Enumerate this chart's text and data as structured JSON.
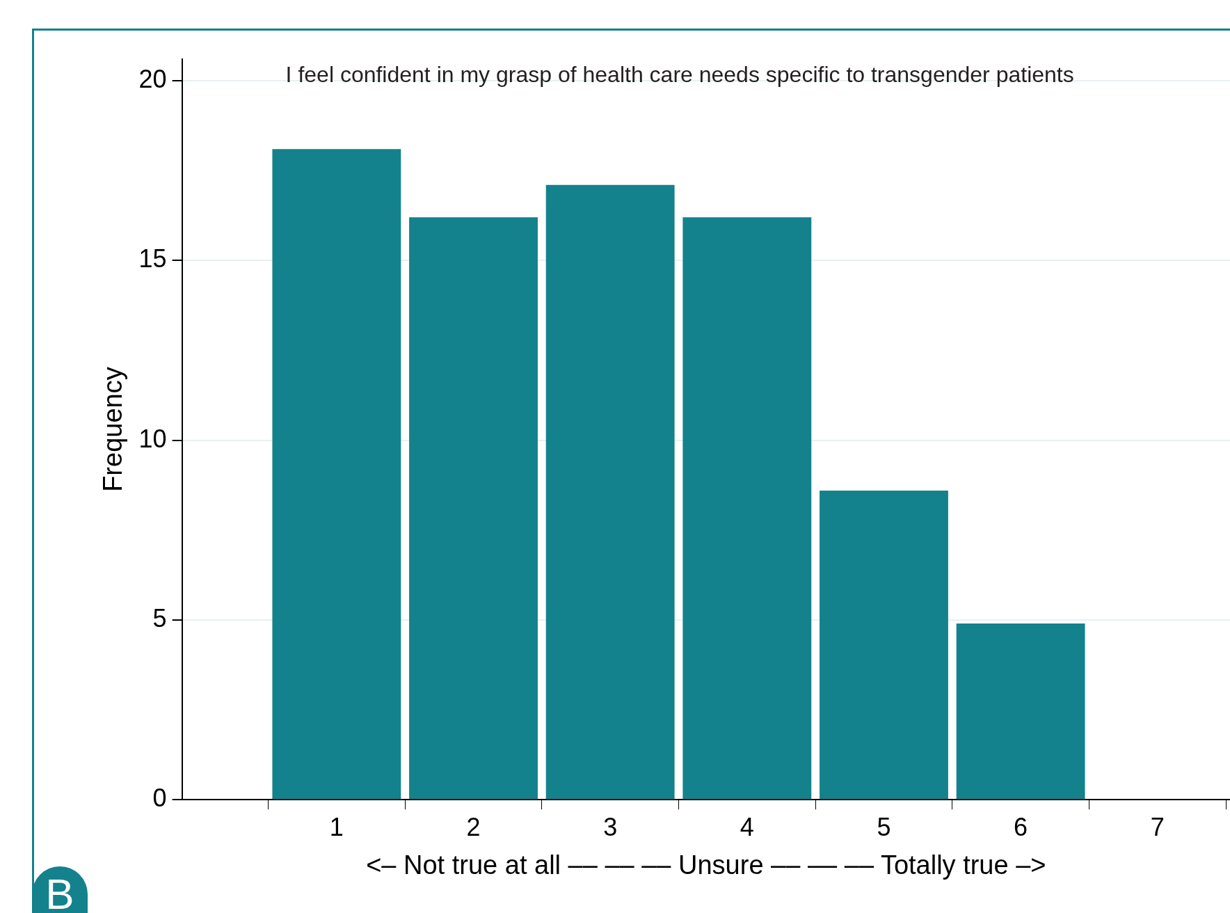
{
  "chart_data": {
    "type": "histogram",
    "title": "I feel confident in my grasp of health care needs specific to transgender patients",
    "xlabel": "<– Not true at all –– –– –– Unsure –– –– –– Totally true –>",
    "ylabel": "Frequency",
    "bins": [
      0.5,
      1.5,
      2.5,
      3.5,
      4.5,
      5.5,
      6.5
    ],
    "values": [
      18.1,
      16.2,
      17.1,
      16.2,
      8.6,
      4.9
    ],
    "color": "#13828c",
    "xlim": [
      -0.13,
      7.53
    ],
    "xticks": [
      1,
      2,
      3,
      4,
      5,
      6,
      7
    ],
    "ylim": [
      0,
      20.6
    ],
    "yticks": [
      0,
      5,
      10,
      15,
      20
    ],
    "grid": "y",
    "annotations": [
      "B"
    ]
  }
}
